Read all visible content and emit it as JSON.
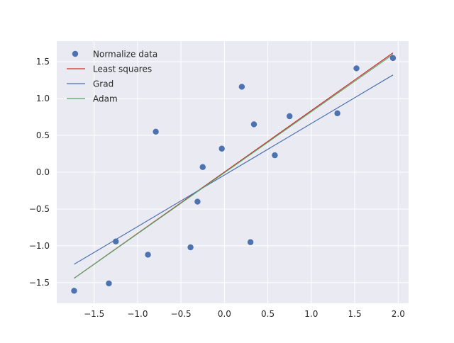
{
  "chart_data": {
    "type": "scatter",
    "title": "",
    "xlabel": "",
    "ylabel": "",
    "xlim": [
      -1.93,
      2.12
    ],
    "ylim": [
      -1.78,
      1.78
    ],
    "x_ticks": [
      -1.5,
      -1.0,
      -0.5,
      0.0,
      0.5,
      1.0,
      1.5,
      2.0
    ],
    "x_tick_labels": [
      "−1.5",
      "−1.0",
      "−0.5",
      "0.0",
      "0.5",
      "1.0",
      "1.5",
      "2.0"
    ],
    "y_ticks": [
      -1.5,
      -1.0,
      -0.5,
      0.0,
      0.5,
      1.0,
      1.5
    ],
    "y_tick_labels": [
      "−1.5",
      "−1.0",
      "−0.5",
      "0.0",
      "0.5",
      "1.0",
      "1.5"
    ],
    "grid": true,
    "legend_position": "top-left",
    "legend": [
      {
        "label": "Normalize data",
        "kind": "marker",
        "color": "#4c72b0"
      },
      {
        "label": "Least squares",
        "kind": "line",
        "color": "#d62728"
      },
      {
        "label": "Grad",
        "kind": "line",
        "color": "#4c72b0"
      },
      {
        "label": "Adam",
        "kind": "line",
        "color": "#55a868"
      }
    ],
    "series": [
      {
        "name": "Normalize data",
        "kind": "scatter",
        "color": "#4c72b0",
        "points": [
          [
            -1.73,
            -1.61
          ],
          [
            -1.33,
            -1.51
          ],
          [
            -1.25,
            -0.94
          ],
          [
            -0.88,
            -1.12
          ],
          [
            -0.79,
            0.55
          ],
          [
            -0.39,
            -1.02
          ],
          [
            -0.31,
            -0.4
          ],
          [
            -0.25,
            0.07
          ],
          [
            -0.03,
            0.32
          ],
          [
            0.2,
            1.16
          ],
          [
            0.3,
            -0.95
          ],
          [
            0.34,
            0.65
          ],
          [
            0.58,
            0.23
          ],
          [
            0.75,
            0.76
          ],
          [
            1.3,
            0.8
          ],
          [
            1.52,
            1.41
          ],
          [
            1.94,
            1.55
          ]
        ]
      },
      {
        "name": "Least squares",
        "kind": "line",
        "color": "#d62728",
        "points": [
          [
            -1.73,
            -1.44
          ],
          [
            1.94,
            1.62
          ]
        ]
      },
      {
        "name": "Grad",
        "kind": "line",
        "color": "#4c72b0",
        "points": [
          [
            -1.73,
            -1.25
          ],
          [
            1.94,
            1.32
          ]
        ]
      },
      {
        "name": "Adam",
        "kind": "line",
        "color": "#55a868",
        "points": [
          [
            -1.73,
            -1.44
          ],
          [
            1.94,
            1.6
          ]
        ]
      }
    ],
    "colors": {
      "axes_background": "#eaeaf2",
      "grid": "#ffffff",
      "tick_text": "#262626"
    }
  }
}
